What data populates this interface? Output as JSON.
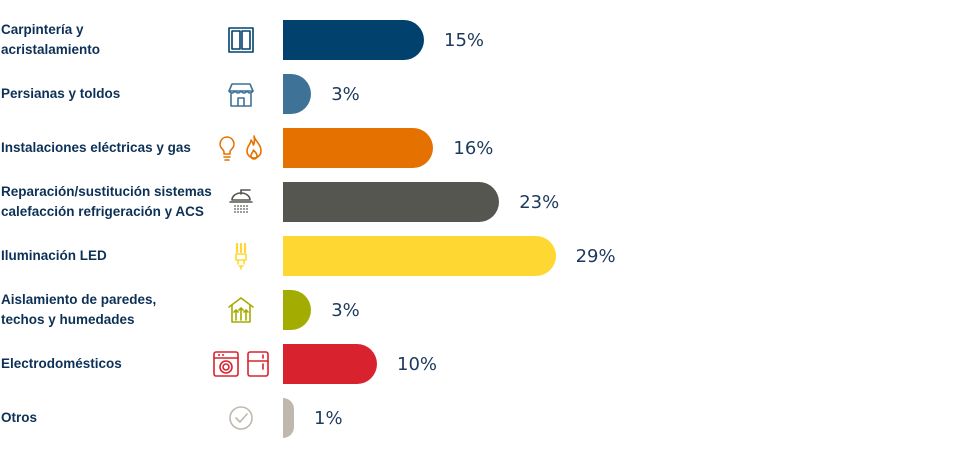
{
  "chart_data": {
    "type": "bar",
    "orientation": "horizontal",
    "categories": [
      "Carpintería y acristalamiento",
      "Persianas y toldos",
      "Instalaciones eléctricas y gas",
      "Reparación/sustitución sistemas calefacción refrigeración y ACS",
      "Iluminación LED",
      "Aislamiento de paredes, techos y humedades",
      "Electrodomésticos",
      "Otros"
    ],
    "values": [
      15,
      3,
      16,
      23,
      29,
      3,
      10,
      1
    ],
    "value_labels": [
      "15%",
      "3%",
      "16%",
      "23%",
      "29%",
      "3%",
      "10%",
      "1%"
    ],
    "bar_colors": [
      "#00416e",
      "#3f7297",
      "#e57200",
      "#55564f",
      "#ffd733",
      "#a3ac00",
      "#d8232f",
      "#bfb8ae"
    ],
    "icons": [
      [
        "window-icon"
      ],
      [
        "shop-awning-icon"
      ],
      [
        "lightbulb-icon",
        "flame-icon"
      ],
      [
        "shower-heater-icon"
      ],
      [
        "led-bulb-icon"
      ],
      [
        "insulation-house-icon"
      ],
      [
        "washing-machine-icon",
        "fridge-icon"
      ],
      [
        "check-circle-icon"
      ]
    ],
    "icon_colors": [
      "#00416e",
      "#3f7297",
      "#e57200",
      "#55564f",
      "#ffd733",
      "#a3ac00",
      "#d8232f",
      "#bfb8ae"
    ],
    "label_color": "#0d3156",
    "value_label_color": "#1d3a5c",
    "title": "",
    "xlabel": "",
    "ylabel": "",
    "grid": false,
    "legend": "none"
  }
}
